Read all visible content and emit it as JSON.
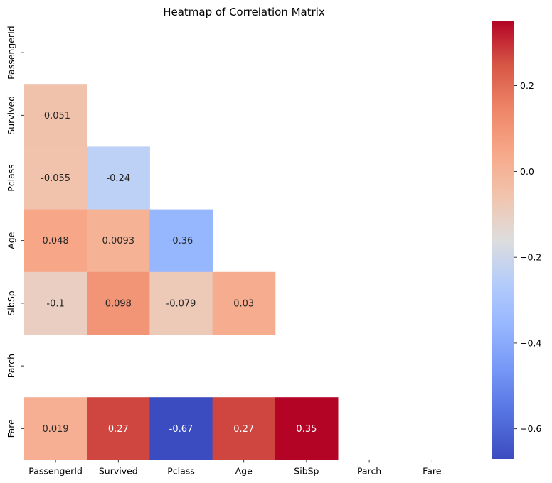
{
  "chart_data": {
    "type": "heatmap",
    "title": "Heatmap of Correlation Matrix",
    "xlabel": "",
    "ylabel": "",
    "rows": [
      "PassengerId",
      "Survived",
      "Pclass",
      "Age",
      "SibSp",
      "Parch",
      "Fare"
    ],
    "columns": [
      "PassengerId",
      "Survived",
      "Pclass",
      "Age",
      "SibSp",
      "Parch",
      "Fare"
    ],
    "mask": "upper-triangle-including-diagonal",
    "cells": [
      {
        "row": "Survived",
        "col": "PassengerId",
        "value": -0.051,
        "label": "-0.051"
      },
      {
        "row": "Pclass",
        "col": "PassengerId",
        "value": -0.055,
        "label": "-0.055"
      },
      {
        "row": "Pclass",
        "col": "Survived",
        "value": -0.24,
        "label": "-0.24"
      },
      {
        "row": "Age",
        "col": "PassengerId",
        "value": 0.048,
        "label": "0.048"
      },
      {
        "row": "Age",
        "col": "Survived",
        "value": 0.0093,
        "label": "0.0093"
      },
      {
        "row": "Age",
        "col": "Pclass",
        "value": -0.36,
        "label": "-0.36"
      },
      {
        "row": "SibSp",
        "col": "PassengerId",
        "value": -0.1,
        "label": "-0.1"
      },
      {
        "row": "SibSp",
        "col": "Survived",
        "value": 0.098,
        "label": "0.098"
      },
      {
        "row": "SibSp",
        "col": "Pclass",
        "value": -0.079,
        "label": "-0.079"
      },
      {
        "row": "SibSp",
        "col": "Age",
        "value": 0.03,
        "label": "0.03"
      },
      {
        "row": "Fare",
        "col": "PassengerId",
        "value": 0.019,
        "label": "0.019"
      },
      {
        "row": "Fare",
        "col": "Survived",
        "value": 0.27,
        "label": "0.27"
      },
      {
        "row": "Fare",
        "col": "Pclass",
        "value": -0.67,
        "label": "-0.67"
      },
      {
        "row": "Fare",
        "col": "Age",
        "value": 0.27,
        "label": "0.27"
      },
      {
        "row": "Fare",
        "col": "SibSp",
        "value": 0.35,
        "label": "0.35"
      }
    ],
    "colorbar": {
      "colormap": "coolwarm",
      "vmin": -0.67,
      "vmax": 0.35,
      "ticks": [
        0.2,
        0.0,
        -0.2,
        -0.4,
        -0.6
      ],
      "tick_labels": [
        "0.2",
        "0.0",
        "−0.2",
        "−0.4",
        "−0.6"
      ]
    },
    "grid": false,
    "legend": "colorbar-right"
  }
}
